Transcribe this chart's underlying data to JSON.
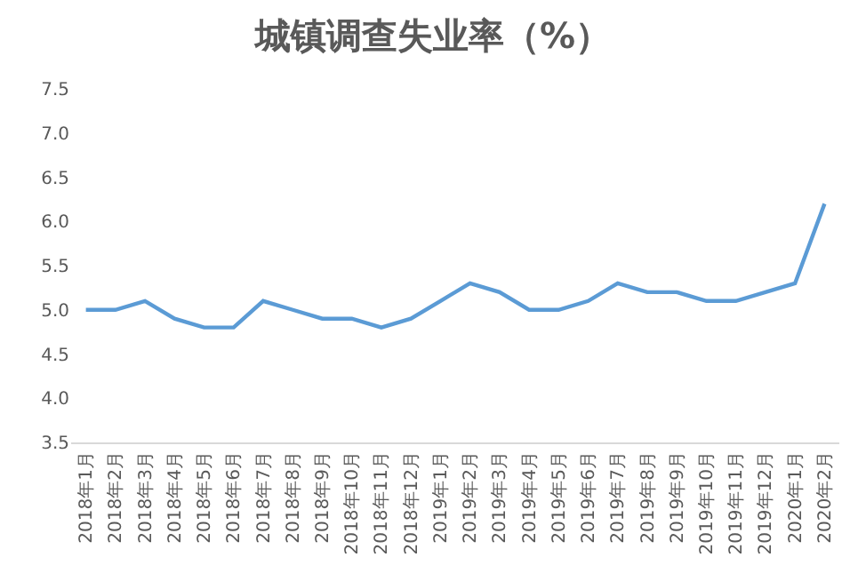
{
  "chart_data": {
    "type": "line",
    "title": "城镇调查失业率（%）",
    "categories": [
      "2018年1月",
      "2018年2月",
      "2018年3月",
      "2018年4月",
      "2018年5月",
      "2018年6月",
      "2018年7月",
      "2018年8月",
      "2018年9月",
      "2018年10月",
      "2018年11月",
      "2018年12月",
      "2019年1月",
      "2019年2月",
      "2019年3月",
      "2019年4月",
      "2019年5月",
      "2019年6月",
      "2019年7月",
      "2019年8月",
      "2019年9月",
      "2019年10月",
      "2019年11月",
      "2019年12月",
      "2020年1月",
      "2020年2月"
    ],
    "series": [
      {
        "color": "#5b9bd5",
        "values": [
          5.0,
          5.0,
          5.1,
          4.9,
          4.8,
          4.8,
          5.1,
          5.0,
          4.9,
          4.9,
          4.8,
          4.9,
          5.1,
          5.3,
          5.2,
          5.0,
          5.0,
          5.1,
          5.3,
          5.2,
          5.2,
          5.1,
          5.1,
          5.2,
          5.3,
          6.2
        ]
      }
    ],
    "ylim": [
      3.5,
      7.5
    ],
    "yticks": [
      {
        "value": 3.5,
        "label": "3.5"
      },
      {
        "value": 4,
        "label": "4.0"
      },
      {
        "value": 4.5,
        "label": "4.5"
      },
      {
        "value": 5,
        "label": "5.0"
      },
      {
        "value": 5.5,
        "label": "5.5"
      },
      {
        "value": 6,
        "label": "6.0"
      },
      {
        "value": 6.5,
        "label": "6.5"
      },
      {
        "value": 7,
        "label": "7.0"
      },
      {
        "value": 7.5,
        "label": "7.5"
      }
    ],
    "line_style": "solid"
  }
}
